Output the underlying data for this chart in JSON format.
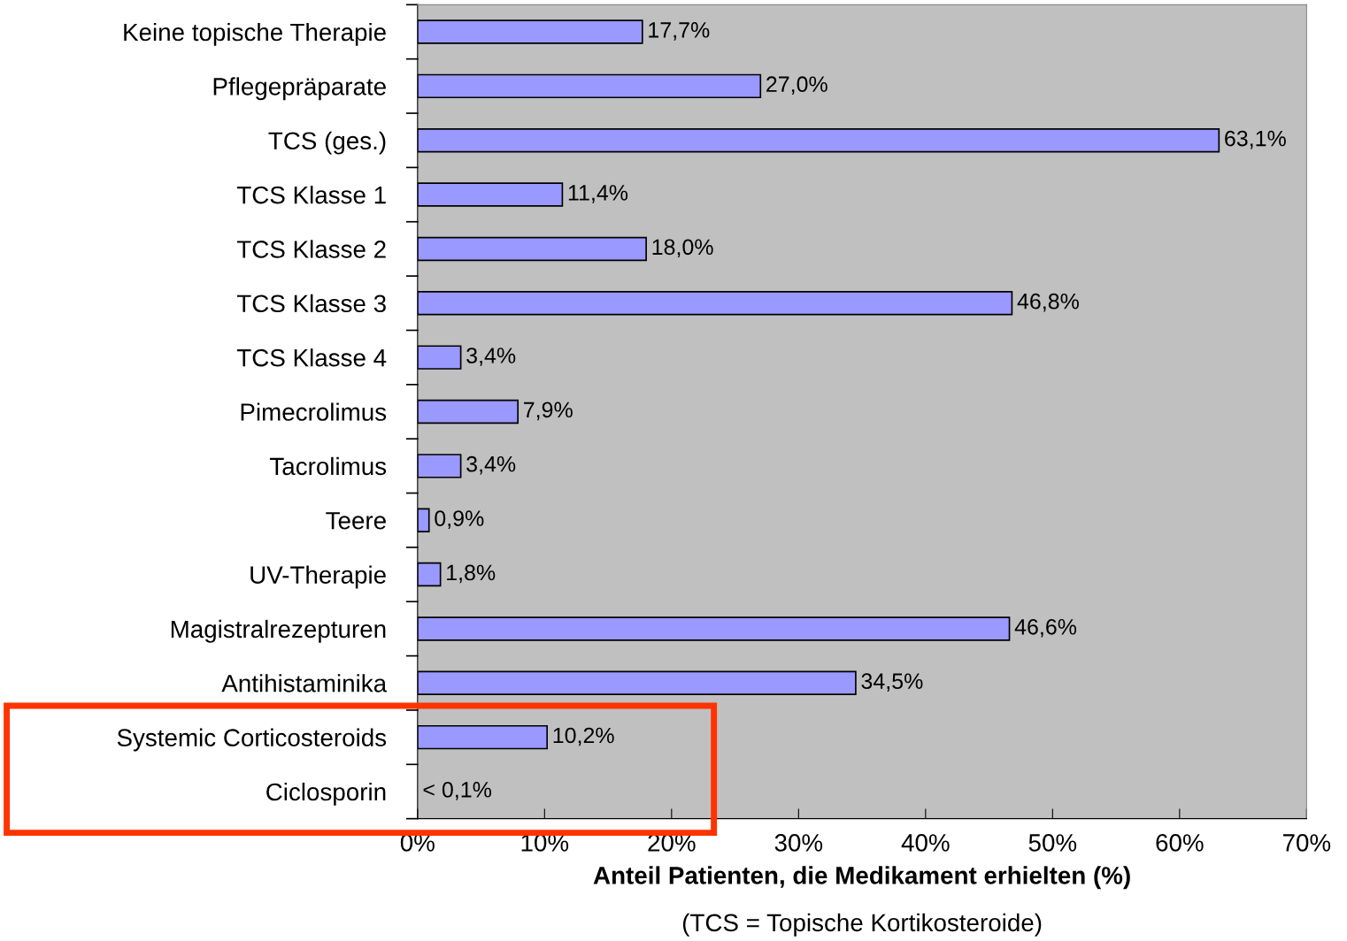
{
  "chart_data": {
    "type": "bar",
    "orientation": "horizontal",
    "xlabel": "Anteil Patienten, die Medikament erhielten (%)",
    "annotations": [
      "(TCS = Topische Kortikosteroide)"
    ],
    "categories": [
      "Keine topische Therapie",
      "Pflegepräparate",
      "TCS (ges.)",
      "TCS Klasse 1",
      "TCS Klasse 2",
      "TCS Klasse 3",
      "TCS Klasse 4",
      "Pimecrolimus",
      "Tacrolimus",
      "Teere",
      "UV-Therapie",
      "Magistralrezepturen",
      "Antihistaminika",
      "Systemic Corticosteroids",
      "Ciclosporin"
    ],
    "values": [
      17.7,
      27.0,
      63.1,
      11.4,
      18.0,
      46.8,
      3.4,
      7.9,
      3.4,
      0.9,
      1.8,
      46.6,
      34.5,
      10.2,
      0
    ],
    "value_labels": [
      "17,7%",
      "27,0%",
      "63,1%",
      "11,4%",
      "18,0%",
      "46,8%",
      "3,4%",
      "7,9%",
      "3,4%",
      "0,9%",
      "1,8%",
      "46,6%",
      "34,5%",
      "10,2%",
      "< 0,1%"
    ],
    "color": "#9999ff",
    "xlim": [
      0,
      70
    ],
    "xticks": [
      {
        "value": 0,
        "label": "0%"
      },
      {
        "value": 10,
        "label": "10%"
      },
      {
        "value": 20,
        "label": "20%"
      },
      {
        "value": 30,
        "label": "30%"
      },
      {
        "value": 40,
        "label": "40%"
      },
      {
        "value": 50,
        "label": "50%"
      },
      {
        "value": 60,
        "label": "60%"
      },
      {
        "value": 70,
        "label": "70%"
      }
    ],
    "grid": false
  }
}
